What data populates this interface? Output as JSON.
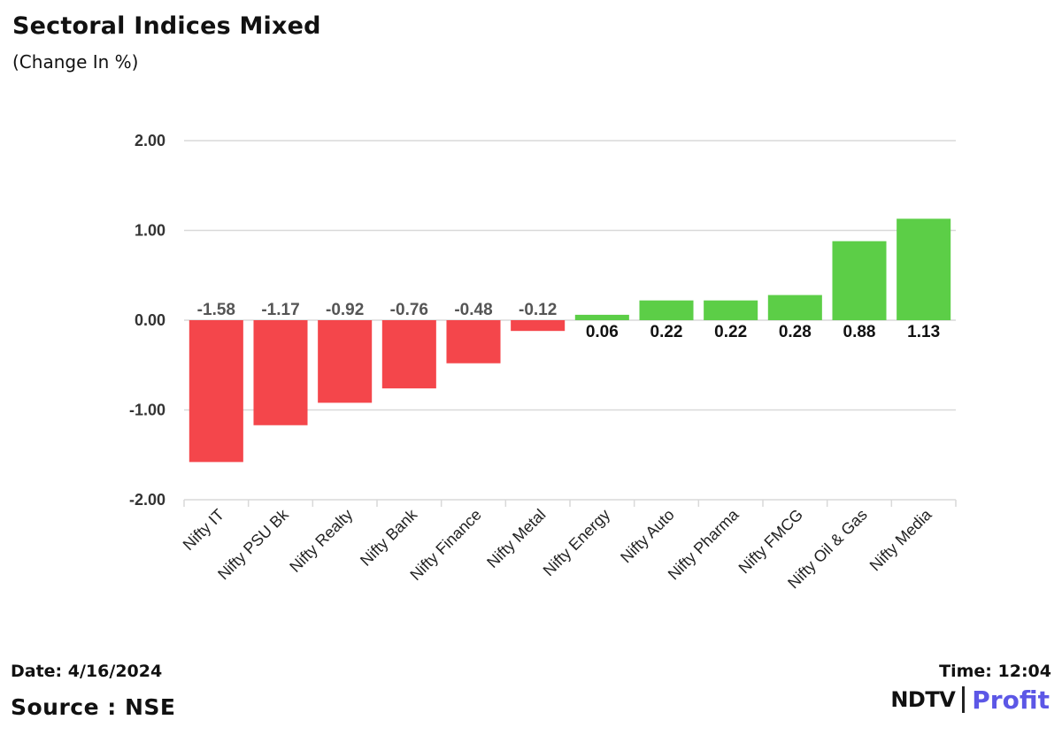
{
  "header": {
    "title": "Sectoral Indices Mixed",
    "subtitle": "(Change In %)"
  },
  "footer": {
    "date": "Date: 4/16/2024",
    "time": "Time: 12:04",
    "source": "Source : NSE"
  },
  "logo": {
    "ndtv": "NDTV",
    "profit": "Profit"
  },
  "colors": {
    "negative": "#f4464b",
    "positive": "#5cce47",
    "grid": "#d9d9d9",
    "brand_profit": "#5c57e6"
  },
  "chart_data": {
    "type": "bar",
    "title": "Sectoral Indices Mixed",
    "subtitle": "(Change In %)",
    "categories": [
      "Nifty IT",
      "Nifty PSU Bk",
      "Nifty Realty",
      "Nifty Bank",
      "Nifty Finance",
      "Nifty Metal",
      "Nifty Energy",
      "Nifty Auto",
      "Nifty Pharma",
      "Nifty FMCG",
      "Nifty Oil & Gas",
      "Nifty Media"
    ],
    "values": [
      -1.58,
      -1.17,
      -0.92,
      -0.76,
      -0.48,
      -0.12,
      0.06,
      0.22,
      0.22,
      0.28,
      0.88,
      1.13
    ],
    "value_labels": [
      "-1.58",
      "-1.17",
      "-0.92",
      "-0.76",
      "-0.48",
      "-0.12",
      "0.06",
      "0.22",
      "0.22",
      "0.28",
      "0.88",
      "1.13"
    ],
    "yticks": [
      "2.00",
      "1.00",
      "0.00",
      "-1.00",
      "-2.00"
    ],
    "ytick_values": [
      2,
      1,
      0,
      -1,
      -2
    ],
    "ylim": [
      -2,
      2
    ],
    "grid": true
  }
}
